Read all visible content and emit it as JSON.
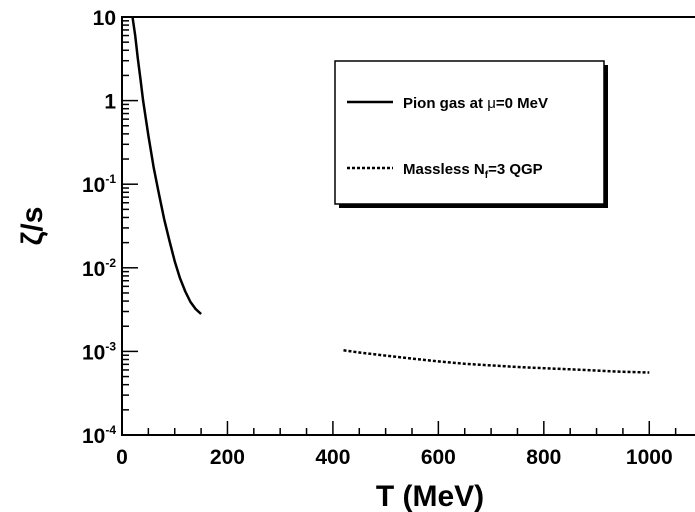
{
  "chart_data": {
    "type": "line",
    "title": "",
    "xlabel": "T (MeV)",
    "ylabel": "ζ/s",
    "xlim": [
      0,
      1100
    ],
    "ylim": [
      0.0001,
      10
    ],
    "y_scale": "log",
    "grid": false,
    "legend_position": "top-right",
    "x_ticks": [
      {
        "value": 0,
        "label": "0"
      },
      {
        "value": 200,
        "label": "200"
      },
      {
        "value": 400,
        "label": "400"
      },
      {
        "value": 600,
        "label": "600"
      },
      {
        "value": 800,
        "label": "800"
      },
      {
        "value": 1000,
        "label": "1000"
      }
    ],
    "y_ticks": [
      {
        "value": 10,
        "label": "10",
        "mantissa": "10",
        "exp": ""
      },
      {
        "value": 1,
        "label": "1",
        "mantissa": "1",
        "exp": ""
      },
      {
        "value": 0.1,
        "label": "10-1",
        "mantissa": "10",
        "exp": "-1"
      },
      {
        "value": 0.01,
        "label": "10-2",
        "mantissa": "10",
        "exp": "-2"
      },
      {
        "value": 0.001,
        "label": "10-3",
        "mantissa": "10",
        "exp": "-3"
      },
      {
        "value": 0.0001,
        "label": "10-4",
        "mantissa": "10",
        "exp": "-4"
      }
    ],
    "series": [
      {
        "name": "Pion gas at μ=0 MeV",
        "legend_parts": [
          "Pion gas at ",
          "μ",
          "=0 MeV"
        ],
        "style": "solid",
        "color": "#000000",
        "x": [
          20,
          25,
          30,
          35,
          40,
          50,
          60,
          70,
          80,
          90,
          100,
          110,
          120,
          130,
          140,
          150
        ],
        "y": [
          10,
          6.0,
          3.2,
          1.8,
          1.0,
          0.38,
          0.16,
          0.077,
          0.038,
          0.021,
          0.012,
          0.0075,
          0.0052,
          0.0039,
          0.0032,
          0.0028
        ]
      },
      {
        "name": "Massless Nf=3 QGP",
        "legend_parts": [
          "Massless N",
          "f",
          "=3 QGP"
        ],
        "style": "dotted",
        "color": "#000000",
        "x": [
          420,
          450,
          500,
          550,
          600,
          650,
          700,
          750,
          800,
          850,
          900,
          950,
          1000
        ],
        "y": [
          0.00103,
          0.00097,
          0.00089,
          0.00082,
          0.00076,
          0.00071,
          0.00068,
          0.00065,
          0.00063,
          0.00061,
          0.00059,
          0.00057,
          0.00056
        ]
      }
    ]
  }
}
